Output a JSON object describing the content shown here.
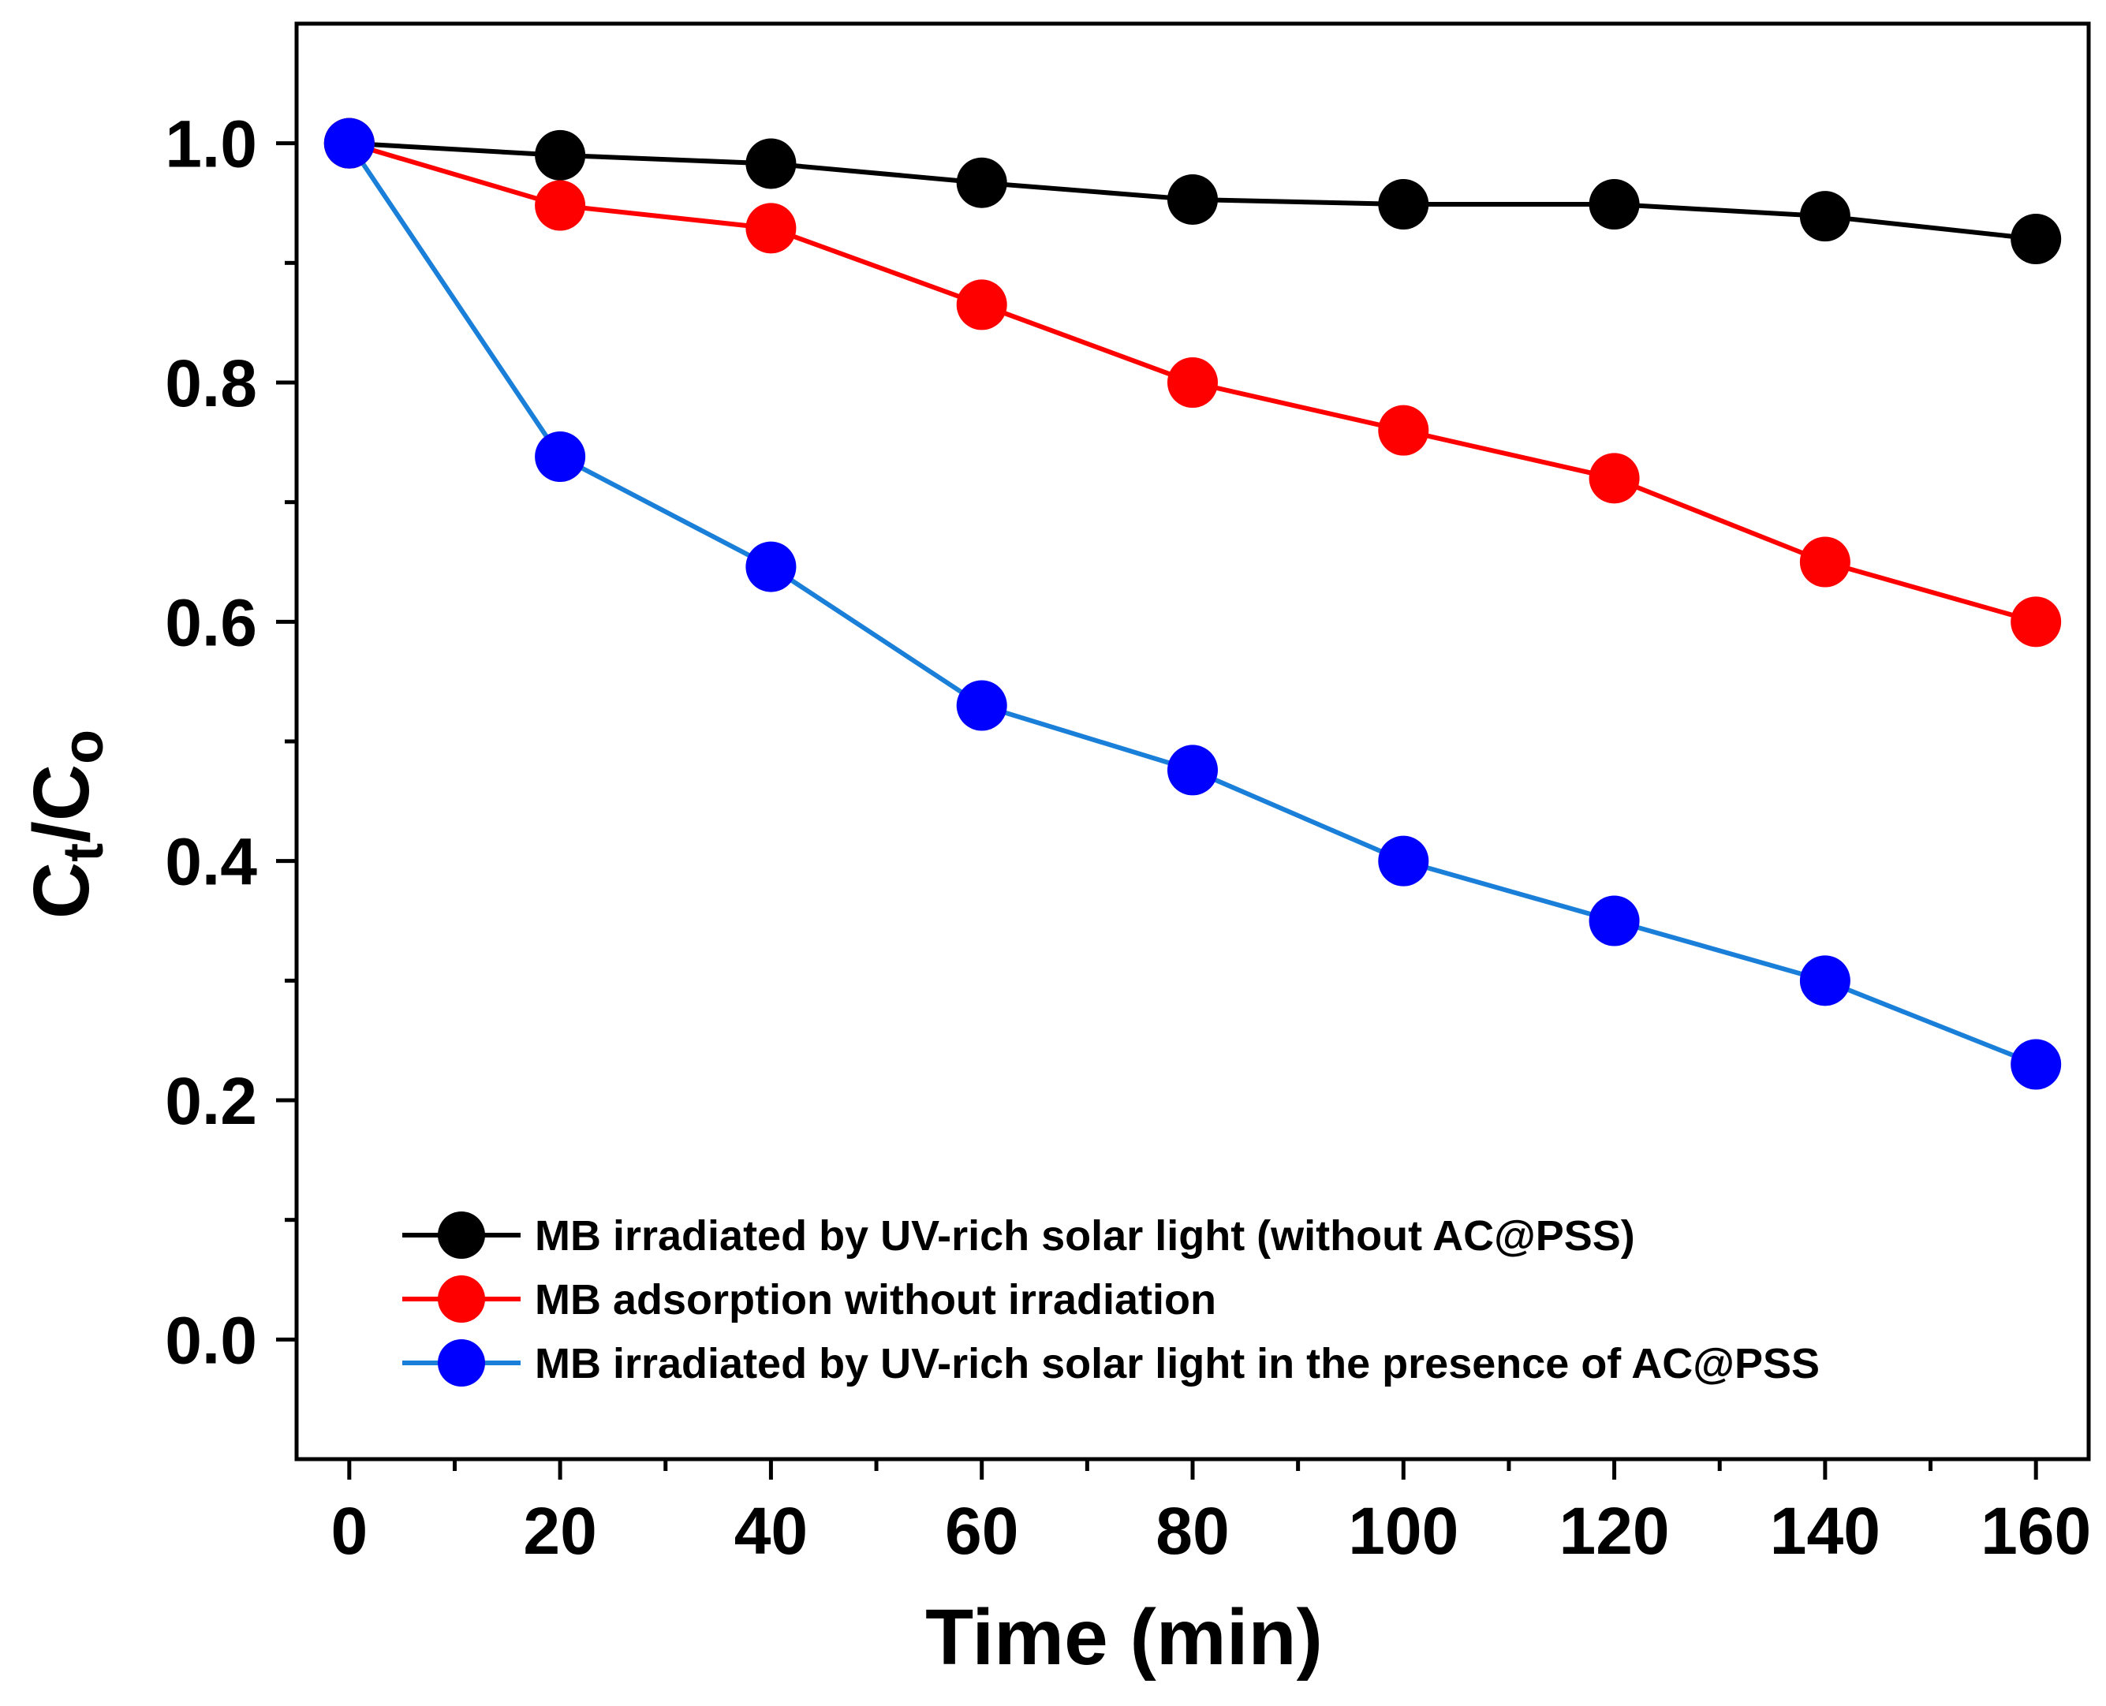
{
  "chart_data": {
    "type": "line",
    "title": "",
    "xlabel": "Time (min)",
    "ylabel": {
      "main": "C",
      "sub1": "t",
      "sep": "/",
      "main2": "C",
      "sub2": "o"
    },
    "xlim": [
      -5,
      165
    ],
    "ylim": [
      -0.1,
      1.1
    ],
    "x_ticks": [
      0,
      20,
      40,
      60,
      80,
      100,
      120,
      140,
      160
    ],
    "x_tick_labels": [
      "0",
      "20",
      "40",
      "60",
      "80",
      "100",
      "120",
      "140",
      "160"
    ],
    "y_ticks": [
      0.0,
      0.2,
      0.4,
      0.6,
      0.8,
      1.0
    ],
    "y_tick_labels": [
      "0.0",
      "0.2",
      "0.4",
      "0.6",
      "0.8",
      "1.0"
    ],
    "x_minor_ticks": [
      10,
      30,
      50,
      70,
      90,
      110,
      130,
      150
    ],
    "y_minor_ticks": [
      0.1,
      0.3,
      0.5,
      0.7,
      0.9
    ],
    "grid": false,
    "legend_position": "bottom-center",
    "x": [
      0,
      20,
      40,
      60,
      80,
      100,
      120,
      140,
      160
    ],
    "series": [
      {
        "name": "MB irradiated by UV-rich solar light (without AC@PSS)",
        "color": "#000000",
        "marker_color": "#000000",
        "values": [
          1.0,
          0.99,
          0.983,
          0.967,
          0.953,
          0.949,
          0.949,
          0.939,
          0.92
        ]
      },
      {
        "name": "MB adsorption without irradiation",
        "color": "#ff0000",
        "marker_color": "#ff0000",
        "values": [
          1.0,
          0.948,
          0.929,
          0.865,
          0.8,
          0.76,
          0.72,
          0.65,
          0.6
        ]
      },
      {
        "name": "MB irradiated by UV-rich solar light in the presence of AC@PSS",
        "color": "#1a7fd9",
        "marker_color": "#0000ff",
        "values": [
          1.0,
          0.738,
          0.646,
          0.53,
          0.476,
          0.4,
          0.35,
          0.3,
          0.23
        ]
      }
    ]
  }
}
